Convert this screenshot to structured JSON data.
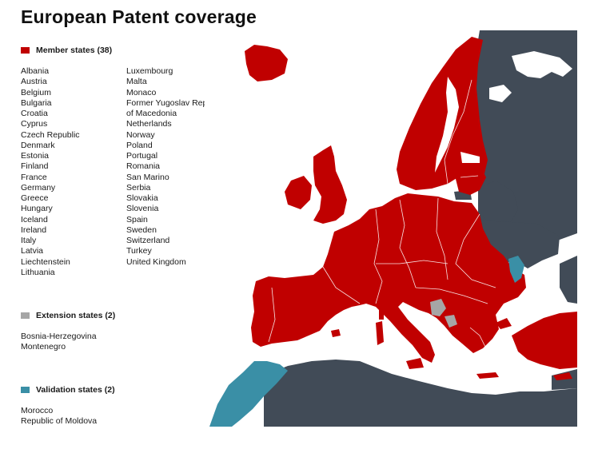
{
  "title": "European Patent coverage",
  "colors": {
    "member": "#c00000",
    "extension": "#a6a6a6",
    "validation": "#3a8fa6",
    "non_member": "#414b57",
    "sea": "#ffffff"
  },
  "legend": {
    "member": {
      "label": "Member states (38)",
      "column1": [
        "Albania",
        "Austria",
        "Belgium",
        "Bulgaria",
        "Croatia",
        "Cyprus",
        "Czech Republic",
        "Denmark",
        "Estonia",
        "Finland",
        "France",
        "Germany",
        "Greece",
        "Hungary",
        "Iceland",
        "Ireland",
        "Italy",
        "Latvia",
        "Liechtenstein",
        "Lithuania"
      ],
      "column2": [
        "Luxembourg",
        "Malta",
        "Monaco",
        "Former Yugoslav Republic",
        "of Macedonia",
        "Netherlands",
        "Norway",
        "Poland",
        "Portugal",
        "Romania",
        "San Marino",
        "Serbia",
        "Slovakia",
        "Slovenia",
        "Spain",
        "Sweden",
        "Switzerland",
        "Turkey",
        "United Kingdom"
      ]
    },
    "extension": {
      "label": "Extension states (2)",
      "items": [
        "Bosnia-Herzegovina",
        "Montenegro"
      ]
    },
    "validation": {
      "label": "Validation states (2)",
      "items": [
        "Morocco",
        "Republic of Moldova"
      ]
    }
  }
}
